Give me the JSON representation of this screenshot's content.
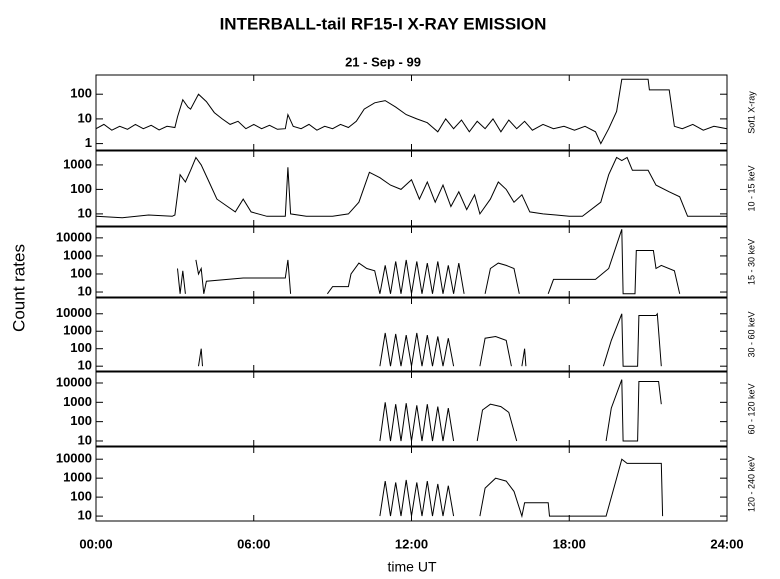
{
  "title": "INTERBALL-tail  RF15-I   X-RAY  EMISSION",
  "subtitle": "21 - Sep - 99",
  "xlabel": "time UT",
  "ylabel": "Count  rates",
  "x_axis": {
    "xlim": [
      0,
      24
    ],
    "xticks": [
      {
        "value": 0,
        "label": "00:00"
      },
      {
        "value": 6,
        "label": "06:00"
      },
      {
        "value": 12,
        "label": "12:00"
      },
      {
        "value": 18,
        "label": "18:00"
      },
      {
        "value": 24,
        "label": "24:00"
      }
    ]
  },
  "chart_data": [
    {
      "type": "line",
      "ylabel": "Sof1  X-ray",
      "log": true,
      "color": "#000000",
      "ylim": [
        0.55,
        600
      ],
      "yticks": [
        1,
        10,
        100
      ],
      "x": [
        0,
        0.3,
        0.6,
        0.9,
        1.2,
        1.5,
        1.8,
        2.1,
        2.4,
        2.7,
        3.0,
        3.1,
        3.3,
        3.5,
        3.6,
        3.9,
        4.2,
        4.5,
        4.8,
        5.1,
        5.4,
        5.7,
        6.0,
        6.3,
        6.6,
        6.9,
        7.2,
        7.3,
        7.5,
        7.8,
        8.1,
        8.4,
        8.7,
        9.0,
        9.3,
        9.6,
        9.9,
        10.2,
        10.6,
        11.0,
        11.4,
        11.8,
        12.2,
        12.6,
        13.0,
        13.3,
        13.6,
        13.9,
        14.2,
        14.5,
        14.8,
        15.1,
        15.4,
        15.7,
        16.0,
        16.3,
        16.6,
        17.0,
        17.4,
        17.8,
        18.2,
        18.6,
        19.0,
        19.2,
        19.5,
        19.8,
        20.0,
        21.0,
        21.05,
        21.8,
        22.0,
        22.3,
        22.7,
        23.1,
        23.5,
        24
      ],
      "values": [
        4,
        6,
        3.5,
        5,
        3.8,
        6,
        4,
        5.5,
        3.6,
        5,
        4.5,
        12,
        60,
        30,
        25,
        100,
        50,
        18,
        10,
        6,
        8,
        4,
        6,
        4,
        5.5,
        3.8,
        4,
        15,
        5,
        4,
        6,
        3.5,
        5,
        4,
        6,
        4.5,
        8,
        25,
        45,
        55,
        30,
        15,
        10,
        7,
        3,
        10,
        4,
        9,
        3,
        8,
        4,
        10,
        3,
        9,
        4,
        8,
        3.5,
        6,
        4,
        5,
        3.5,
        5,
        3,
        1,
        4,
        20,
        400,
        400,
        150,
        150,
        5,
        4,
        6,
        3.5,
        5,
        4
      ]
    },
    {
      "type": "line",
      "ylabel": "10 - 15 keV",
      "log": true,
      "color": "#000000",
      "ylim": [
        3.2,
        3700
      ],
      "yticks": [
        10,
        100,
        1000
      ],
      "x": [
        0,
        1,
        2,
        2.9,
        3.0,
        3.2,
        3.4,
        3.6,
        3.8,
        4.0,
        4.3,
        4.6,
        5.0,
        5.3,
        5.6,
        5.9,
        6.5,
        7.2,
        7.3,
        7.4,
        8.0,
        9.0,
        9.6,
        10.0,
        10.4,
        10.8,
        11.2,
        11.6,
        12.0,
        12.3,
        12.6,
        12.9,
        13.2,
        13.5,
        13.8,
        14.1,
        14.4,
        14.6,
        15.0,
        15.3,
        15.6,
        15.9,
        16.2,
        16.5,
        17.0,
        17.5,
        18.0,
        18.5,
        19.2,
        19.5,
        19.8,
        20.0,
        20.2,
        20.4,
        21.0,
        21.3,
        21.8,
        22.2,
        22.5,
        23.0,
        24
      ],
      "values": [
        8,
        7,
        9,
        8,
        9,
        400,
        200,
        600,
        2000,
        1000,
        200,
        40,
        20,
        12,
        40,
        12,
        8,
        8,
        800,
        10,
        8,
        8,
        10,
        30,
        500,
        300,
        150,
        100,
        250,
        40,
        200,
        30,
        150,
        20,
        80,
        15,
        60,
        10,
        40,
        200,
        100,
        30,
        60,
        12,
        10,
        9,
        8,
        8,
        30,
        400,
        2000,
        1500,
        2000,
        600,
        600,
        150,
        80,
        50,
        8,
        8,
        8
      ]
    },
    {
      "type": "line",
      "ylabel": "15 - 30 keV",
      "log": true,
      "color": "#000000",
      "ylim": [
        5.3,
        40000
      ],
      "yticks": [
        10,
        100,
        1000,
        10000
      ],
      "x": [
        3.1,
        3.2,
        3.3,
        3.4,
        3.6,
        3.8,
        3.9,
        4.0,
        4.1,
        4.2,
        5.6,
        7.2,
        7.3,
        7.4,
        8.0,
        8.8,
        9.0,
        9.6,
        9.7,
        10.0,
        10.3,
        10.6,
        10.8,
        11.0,
        11.2,
        11.4,
        11.6,
        11.8,
        12.0,
        12.2,
        12.4,
        12.6,
        12.8,
        13.0,
        13.2,
        13.4,
        13.6,
        13.8,
        14.0,
        14.4,
        14.8,
        15.0,
        15.3,
        15.6,
        15.9,
        16.1,
        16.6,
        17.2,
        17.4,
        19.0,
        19.5,
        20.0,
        20.05,
        20.5,
        20.55,
        21.2,
        21.3,
        21.5,
        22.0,
        22.2
      ],
      "values": [
        200,
        8,
        150,
        8,
        null,
        600,
        100,
        200,
        8,
        40,
        60,
        60,
        600,
        8,
        null,
        8,
        20,
        20,
        100,
        400,
        200,
        150,
        8,
        300,
        8,
        500,
        8,
        600,
        8,
        500,
        8,
        400,
        8,
        500,
        8,
        300,
        8,
        400,
        8,
        null,
        8,
        200,
        400,
        300,
        200,
        8,
        null,
        8,
        50,
        50,
        200,
        30000,
        8,
        8,
        2000,
        2000,
        200,
        300,
        150,
        8
      ]
    },
    {
      "type": "line",
      "ylabel": "30 - 60 keV",
      "log": true,
      "color": "#000000",
      "ylim": [
        5.3,
        80000
      ],
      "yticks": [
        10,
        100,
        1000,
        10000
      ],
      "x": [
        3.9,
        4.0,
        4.05,
        4.2,
        10.8,
        11.0,
        11.2,
        11.4,
        11.6,
        11.8,
        12.0,
        12.2,
        12.4,
        12.6,
        12.8,
        13.0,
        13.2,
        13.4,
        13.6,
        14.2,
        14.6,
        14.8,
        15.2,
        15.6,
        15.8,
        16.0,
        16.2,
        16.3,
        16.35,
        17.0,
        19.3,
        19.6,
        20.0,
        20.05,
        20.6,
        20.65,
        21.3,
        21.35,
        21.5
      ],
      "values": [
        10,
        100,
        10,
        null,
        10,
        800,
        10,
        700,
        10,
        600,
        10,
        800,
        10,
        600,
        10,
        500,
        10,
        400,
        10,
        null,
        10,
        400,
        500,
        300,
        10,
        null,
        10,
        100,
        10,
        null,
        10,
        300,
        10000,
        10,
        10,
        8000,
        8000,
        10000,
        10
      ]
    },
    {
      "type": "line",
      "ylabel": "60 - 120 keV",
      "log": true,
      "color": "#000000",
      "ylim": [
        5.5,
        37000
      ],
      "yticks": [
        10,
        100,
        1000,
        10000
      ],
      "x": [
        10.8,
        11.0,
        11.2,
        11.4,
        11.6,
        11.8,
        12.0,
        12.2,
        12.4,
        12.6,
        12.8,
        13.0,
        13.2,
        13.4,
        13.6,
        13.9,
        14.5,
        14.7,
        15.0,
        15.4,
        15.7,
        16.0,
        16.2,
        19.4,
        19.6,
        20.0,
        20.05,
        20.6,
        20.65,
        21.4,
        21.5
      ],
      "values": [
        10,
        1000,
        10,
        800,
        10,
        900,
        10,
        700,
        10,
        800,
        10,
        600,
        10,
        500,
        10,
        null,
        10,
        400,
        800,
        600,
        300,
        10,
        null,
        10,
        500,
        15000,
        10,
        10,
        12000,
        12000,
        800
      ]
    },
    {
      "type": "line",
      "ylabel": "120 - 240 keV",
      "log": true,
      "color": "#000000",
      "ylim": [
        5.5,
        44000
      ],
      "yticks": [
        10,
        100,
        1000,
        10000
      ],
      "x": [
        10.8,
        11.0,
        11.2,
        11.4,
        11.6,
        11.8,
        12.0,
        12.2,
        12.4,
        12.6,
        12.8,
        13.0,
        13.2,
        13.4,
        13.6,
        14.0,
        14.6,
        14.8,
        15.2,
        15.6,
        15.9,
        16.2,
        16.3,
        17.2,
        17.25,
        19.4,
        19.8,
        20.0,
        20.2,
        21.5,
        21.55
      ],
      "values": [
        10,
        700,
        10,
        600,
        10,
        800,
        10,
        600,
        10,
        700,
        10,
        500,
        10,
        400,
        10,
        null,
        10,
        300,
        1000,
        700,
        200,
        10,
        50,
        50,
        10,
        10,
        1000,
        10000,
        6000,
        6000,
        10
      ]
    }
  ]
}
